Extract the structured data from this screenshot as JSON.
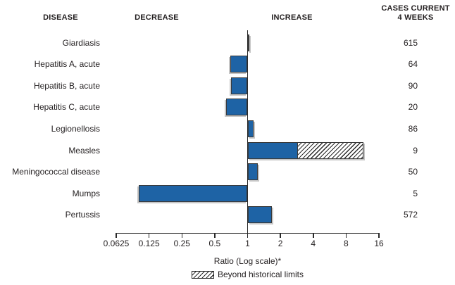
{
  "header": {
    "disease": "DISEASE",
    "decrease": "DECREASE",
    "increase": "INCREASE",
    "cases_line1": "CASES CURRENT",
    "cases_line2": "4 WEEKS"
  },
  "chart_data": {
    "type": "bar",
    "orientation": "horizontal",
    "scale": "log2",
    "xlabel": "Ratio (Log scale)*",
    "x_ticks": [
      "0.0625",
      "0.125",
      "0.25",
      "0.5",
      "1",
      "2",
      "4",
      "8",
      "16"
    ],
    "x_range": [
      0.0625,
      16
    ],
    "baseline_ratio": 1,
    "grid": false,
    "legend": [
      {
        "label": "Beyond historical limits",
        "swatch": "hatched"
      }
    ],
    "rows": [
      {
        "disease": "Giardiasis",
        "ratio": 1.04,
        "beyond_to": null,
        "cases": "615"
      },
      {
        "disease": "Hepatitis A, acute",
        "ratio": 0.69,
        "beyond_to": null,
        "cases": "64"
      },
      {
        "disease": "Hepatitis B, acute",
        "ratio": 0.71,
        "beyond_to": null,
        "cases": "90"
      },
      {
        "disease": "Hepatitis C, acute",
        "ratio": 0.64,
        "beyond_to": null,
        "cases": "20"
      },
      {
        "disease": "Legionellosis",
        "ratio": 1.13,
        "beyond_to": null,
        "cases": "86"
      },
      {
        "disease": "Measles",
        "ratio": 2.9,
        "beyond_to": 11.5,
        "cases": "9"
      },
      {
        "disease": "Meningococcal disease",
        "ratio": 1.24,
        "beyond_to": null,
        "cases": "50"
      },
      {
        "disease": "Mumps",
        "ratio": 0.1,
        "beyond_to": null,
        "cases": "5"
      },
      {
        "disease": "Pertussis",
        "ratio": 1.68,
        "beyond_to": null,
        "cases": "572"
      }
    ]
  },
  "colors": {
    "bar_fill": "#1e63a5",
    "bar_border": "#3a3a3a",
    "axis": "#2b2b2b",
    "text": "#231f20",
    "shadow": "#c6c6c6"
  }
}
